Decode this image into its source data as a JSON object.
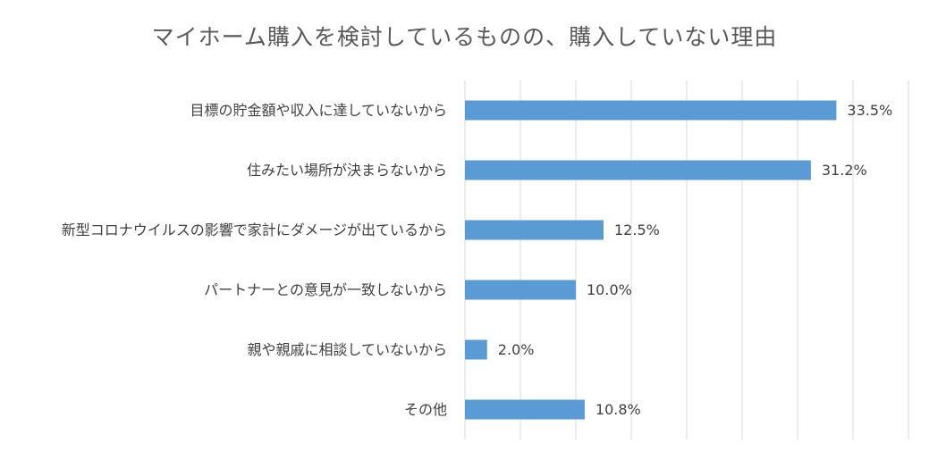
{
  "chart_data": {
    "type": "bar",
    "orientation": "horizontal",
    "title": "マイホーム購入を検討しているものの、購入していない理由",
    "categories": [
      "目標の貯金額や収入に達していないから",
      "住みたい場所が決まらないから",
      "新型コロナウイルスの影響で家計にダメージが出ているから",
      "パートナーとの意見が一致しないから",
      "親や親戚に相談していないから",
      "その他"
    ],
    "values": [
      33.5,
      31.2,
      12.5,
      10.0,
      2.0,
      10.8
    ],
    "value_labels": [
      "33.5%",
      "31.2%",
      "12.5%",
      "10.0%",
      "2.0%",
      "10.8%"
    ],
    "color": "#5b9bd5",
    "xlim": [
      0,
      40
    ],
    "xticks": [
      0,
      5,
      10,
      15,
      20,
      25,
      30,
      35,
      40
    ],
    "grid": true
  }
}
